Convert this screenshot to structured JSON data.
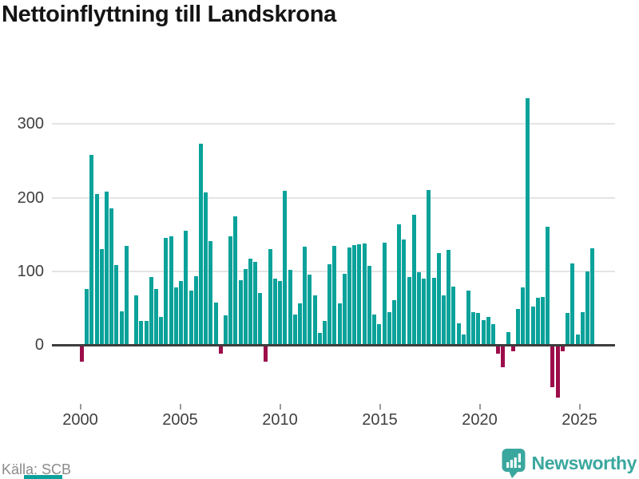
{
  "title": "Nettoinflyttning till Landskrona",
  "source": "Källa: SCB",
  "brand": {
    "name": "Newsworthy"
  },
  "colors": {
    "positive": "#0aa29a",
    "negative": "#9c0d4a",
    "brand": "#3aa79e",
    "grid": "#e4e4e4",
    "axis_line": "#3d3d3d",
    "axis_text": "#404040",
    "muted_text": "#8b8b8b"
  },
  "chart_data": {
    "type": "bar",
    "title": "Nettoinflyttning till Landskrona",
    "xlabel": "",
    "ylabel": "",
    "grid": true,
    "legend": false,
    "frequency": "quarterly",
    "start_period": "2000-Q1",
    "end_period": "2025-Q4",
    "x_tick_labels": [
      "2000",
      "2005",
      "2010",
      "2015",
      "2020",
      "2025"
    ],
    "y_ticks": [
      0,
      100,
      200,
      300
    ],
    "y_tick_labels": [
      "0",
      "100",
      "200",
      "300"
    ],
    "ylim": [
      -80,
      350
    ],
    "values": [
      -23,
      76,
      258,
      205,
      130,
      208,
      186,
      109,
      46,
      134,
      0,
      67,
      33,
      32,
      92,
      76,
      38,
      145,
      148,
      78,
      87,
      155,
      74,
      93,
      273,
      207,
      141,
      57,
      -12,
      40,
      147,
      175,
      88,
      103,
      117,
      113,
      70,
      -23,
      130,
      90,
      87,
      209,
      102,
      41,
      56,
      133,
      95,
      67,
      16,
      33,
      110,
      134,
      56,
      97,
      132,
      136,
      137,
      138,
      107,
      41,
      28,
      139,
      44,
      61,
      164,
      143,
      92,
      177,
      99,
      90,
      210,
      91,
      125,
      67,
      129,
      79,
      29,
      14,
      74,
      44,
      43,
      34,
      38,
      28,
      -12,
      -30,
      17,
      -9,
      49,
      78,
      335,
      52,
      64,
      65,
      160,
      -57,
      -72,
      -9,
      43,
      111,
      14,
      44,
      100,
      131
    ]
  }
}
